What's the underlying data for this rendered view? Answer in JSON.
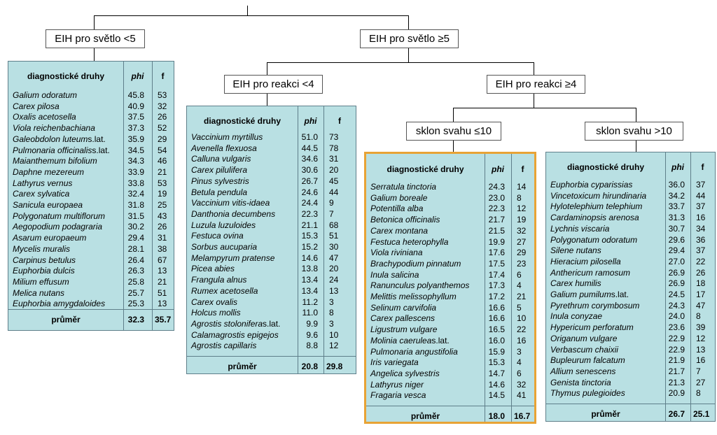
{
  "tree": {
    "root_left": "EIH pro světlo <5",
    "root_right": "EIH pro světlo ≥5",
    "level2_left": "EIH pro reakci <4",
    "level2_right": "EIH pro reakci ≥4",
    "level3_left": "sklon svahu ≤10",
    "level3_right": "sklon svahu >10"
  },
  "header": {
    "species": "diagnostické druhy",
    "phi": "phi",
    "f": "f",
    "mean_label": "průměr"
  },
  "colors": {
    "panel_fill": "#b9e0e3",
    "panel_border": "#5f7f8a",
    "highlight_border": "#e8a335"
  },
  "tables": [
    {
      "id": "light-lt5",
      "highlighted": false,
      "mean_phi": "32.3",
      "mean_f": "35.7",
      "rows": [
        {
          "species": "Galium odoratum",
          "suffix": "",
          "phi": "45.8",
          "f": "53"
        },
        {
          "species": "Carex pilosa",
          "suffix": "",
          "phi": "40.9",
          "f": "32"
        },
        {
          "species": "Oxalis acetosella",
          "suffix": "",
          "phi": "37.5",
          "f": "26"
        },
        {
          "species": "Viola reichenbachiana",
          "suffix": "",
          "phi": "37.3",
          "f": "52"
        },
        {
          "species": "Galeobdolon luteum",
          "suffix": " s.lat.",
          "phi": "35.9",
          "f": "29"
        },
        {
          "species": "Pulmonaria officinalis",
          "suffix": " s.lat.",
          "phi": "34.5",
          "f": "54"
        },
        {
          "species": "Maianthemum bifolium",
          "suffix": "",
          "phi": "34.3",
          "f": "46"
        },
        {
          "species": "Daphne mezereum",
          "suffix": "",
          "phi": "33.9",
          "f": "21"
        },
        {
          "species": "Lathyrus vernus",
          "suffix": "",
          "phi": "33.8",
          "f": "53"
        },
        {
          "species": "Carex sylvatica",
          "suffix": "",
          "phi": "32.4",
          "f": "19"
        },
        {
          "species": "Sanicula europaea",
          "suffix": "",
          "phi": "31.8",
          "f": "25"
        },
        {
          "species": "Polygonatum multiflorum",
          "suffix": "",
          "phi": "31.5",
          "f": "43"
        },
        {
          "species": "Aegopodium podagraria",
          "suffix": "",
          "phi": "30.2",
          "f": "26"
        },
        {
          "species": "Asarum europaeum",
          "suffix": "",
          "phi": "29.4",
          "f": "31"
        },
        {
          "species": "Mycelis muralis",
          "suffix": "",
          "phi": "28.1",
          "f": "38"
        },
        {
          "species": "Carpinus betulus",
          "suffix": "",
          "phi": "26.4",
          "f": "67"
        },
        {
          "species": "Euphorbia dulcis",
          "suffix": "",
          "phi": "26.3",
          "f": "13"
        },
        {
          "species": "Milium effusum",
          "suffix": "",
          "phi": "25.8",
          "f": "21"
        },
        {
          "species": "Melica nutans",
          "suffix": "",
          "phi": "25.7",
          "f": "51"
        },
        {
          "species": "Euphorbia amygdaloides",
          "suffix": "",
          "phi": "25.3",
          "f": "13"
        }
      ]
    },
    {
      "id": "reaction-lt4",
      "highlighted": false,
      "mean_phi": "20.8",
      "mean_f": "29.8",
      "rows": [
        {
          "species": "Vaccinium myrtillus",
          "suffix": "",
          "phi": "51.0",
          "f": "73"
        },
        {
          "species": "Avenella flexuosa",
          "suffix": "",
          "phi": "44.5",
          "f": "78"
        },
        {
          "species": "Calluna vulgaris",
          "suffix": "",
          "phi": "34.6",
          "f": "31"
        },
        {
          "species": "Carex pilulifera",
          "suffix": "",
          "phi": "30.6",
          "f": "20"
        },
        {
          "species": "Pinus sylvestris",
          "suffix": "",
          "phi": "26.7",
          "f": "45"
        },
        {
          "species": "Betula pendula",
          "suffix": "",
          "phi": "24.6",
          "f": "44"
        },
        {
          "species": "Vaccinium vitis-idaea",
          "suffix": "",
          "phi": "24.4",
          "f": "9"
        },
        {
          "species": "Danthonia decumbens",
          "suffix": "",
          "phi": "22.3",
          "f": "7"
        },
        {
          "species": "Luzula luzuloides",
          "suffix": "",
          "phi": "21.1",
          "f": "68"
        },
        {
          "species": "Festuca ovina",
          "suffix": "",
          "phi": "15.3",
          "f": "51"
        },
        {
          "species": "Sorbus aucuparia",
          "suffix": "",
          "phi": "15.2",
          "f": "30"
        },
        {
          "species": "Melampyrum pratense",
          "suffix": "",
          "phi": "14.6",
          "f": "47"
        },
        {
          "species": "Picea abies",
          "suffix": "",
          "phi": "13.8",
          "f": "20"
        },
        {
          "species": "Frangula alnus",
          "suffix": "",
          "phi": "13.4",
          "f": "24"
        },
        {
          "species": "Rumex acetosella",
          "suffix": "",
          "phi": "13.4",
          "f": "13"
        },
        {
          "species": "Carex ovalis",
          "suffix": "",
          "phi": "11.2",
          "f": "3"
        },
        {
          "species": "Holcus mollis",
          "suffix": "",
          "phi": "11.0",
          "f": "8"
        },
        {
          "species": "Agrostis stolonifera",
          "suffix": " s.lat.",
          "phi": "9.9",
          "f": "3"
        },
        {
          "species": "Calamagrostis epigejos",
          "suffix": "",
          "phi": "9.6",
          "f": "10"
        },
        {
          "species": "Agrostis capillaris",
          "suffix": "",
          "phi": "8.8",
          "f": "12"
        }
      ]
    },
    {
      "id": "slope-le10",
      "highlighted": true,
      "mean_phi": "18.0",
      "mean_f": "16.7",
      "rows": [
        {
          "species": "Serratula tinctoria",
          "suffix": "",
          "phi": "24.3",
          "f": "14"
        },
        {
          "species": "Galium boreale",
          "suffix": "",
          "phi": "23.0",
          "f": "8"
        },
        {
          "species": "Potentilla alba",
          "suffix": "",
          "phi": "22.3",
          "f": "12"
        },
        {
          "species": "Betonica officinalis",
          "suffix": "",
          "phi": "21.7",
          "f": "19"
        },
        {
          "species": "Carex montana",
          "suffix": "",
          "phi": "21.5",
          "f": "32"
        },
        {
          "species": "Festuca heterophylla",
          "suffix": "",
          "phi": "19.9",
          "f": "27"
        },
        {
          "species": "Viola riviniana",
          "suffix": "",
          "phi": "17.6",
          "f": "29"
        },
        {
          "species": "Brachypodium pinnatum",
          "suffix": "",
          "phi": "17.5",
          "f": "23"
        },
        {
          "species": "Inula salicina",
          "suffix": "",
          "phi": "17.4",
          "f": "6"
        },
        {
          "species": "Ranunculus polyanthemos",
          "suffix": "",
          "phi": "17.3",
          "f": "4"
        },
        {
          "species": "Melittis melissophyllum",
          "suffix": "",
          "phi": "17.2",
          "f": "21"
        },
        {
          "species": "Selinum carvifolia",
          "suffix": "",
          "phi": "16.6",
          "f": "5"
        },
        {
          "species": "Carex pallescens",
          "suffix": "",
          "phi": "16.6",
          "f": "10"
        },
        {
          "species": "Ligustrum vulgare",
          "suffix": "",
          "phi": "16.5",
          "f": "22"
        },
        {
          "species": "Molinia caerulea",
          "suffix": " s.lat.",
          "phi": "16.0",
          "f": "16"
        },
        {
          "species": "Pulmonaria angustifolia",
          "suffix": "",
          "phi": "15.9",
          "f": "3"
        },
        {
          "species": "Iris variegata",
          "suffix": "",
          "phi": "15.3",
          "f": "4"
        },
        {
          "species": "Angelica sylvestris",
          "suffix": "",
          "phi": "14.7",
          "f": "6"
        },
        {
          "species": "Lathyrus niger",
          "suffix": "",
          "phi": "14.6",
          "f": "32"
        },
        {
          "species": "Fragaria vesca",
          "suffix": "",
          "phi": "14.5",
          "f": "41"
        }
      ]
    },
    {
      "id": "slope-gt10",
      "highlighted": false,
      "mean_phi": "26.7",
      "mean_f": "25.1",
      "rows": [
        {
          "species": "Euphorbia cyparissias",
          "suffix": "",
          "phi": "36.0",
          "f": "37"
        },
        {
          "species": "Vincetoxicum hirundinaria",
          "suffix": "",
          "phi": "34.2",
          "f": "44"
        },
        {
          "species": "Hylotelephium telephium",
          "suffix": "",
          "phi": "33.7",
          "f": "37"
        },
        {
          "species": "Cardaminopsis arenosa",
          "suffix": "",
          "phi": "31.3",
          "f": "16"
        },
        {
          "species": "Lychnis viscaria",
          "suffix": "",
          "phi": "30.7",
          "f": "34"
        },
        {
          "species": "Polygonatum odoratum",
          "suffix": "",
          "phi": "29.6",
          "f": "36"
        },
        {
          "species": "Silene nutans",
          "suffix": "",
          "phi": "29.4",
          "f": "37"
        },
        {
          "species": "Hieracium pilosella",
          "suffix": "",
          "phi": "27.0",
          "f": "22"
        },
        {
          "species": "Anthericum ramosum",
          "suffix": "",
          "phi": "26.9",
          "f": "26"
        },
        {
          "species": "Carex humilis",
          "suffix": "",
          "phi": "26.9",
          "f": "18"
        },
        {
          "species": "Galium pumilum",
          "suffix": " s.lat.",
          "phi": "24.5",
          "f": "17"
        },
        {
          "species": "Pyrethrum corymbosum",
          "suffix": "",
          "phi": "24.3",
          "f": "47"
        },
        {
          "species": "Inula conyzae",
          "suffix": "",
          "phi": "24.0",
          "f": "8"
        },
        {
          "species": "Hypericum perforatum",
          "suffix": "",
          "phi": "23.6",
          "f": "39"
        },
        {
          "species": "Origanum vulgare",
          "suffix": "",
          "phi": "22.9",
          "f": "12"
        },
        {
          "species": "Verbascum chaixii",
          "suffix": "",
          "phi": "22.9",
          "f": "13"
        },
        {
          "species": "Bupleurum falcatum",
          "suffix": "",
          "phi": "21.9",
          "f": "16"
        },
        {
          "species": "Allium senescens",
          "suffix": "",
          "phi": "21.7",
          "f": "7"
        },
        {
          "species": "Genista tinctoria",
          "suffix": "",
          "phi": "21.3",
          "f": "27"
        },
        {
          "species": "Thymus pulegioides",
          "suffix": "",
          "phi": "20.9",
          "f": "8"
        }
      ]
    }
  ]
}
